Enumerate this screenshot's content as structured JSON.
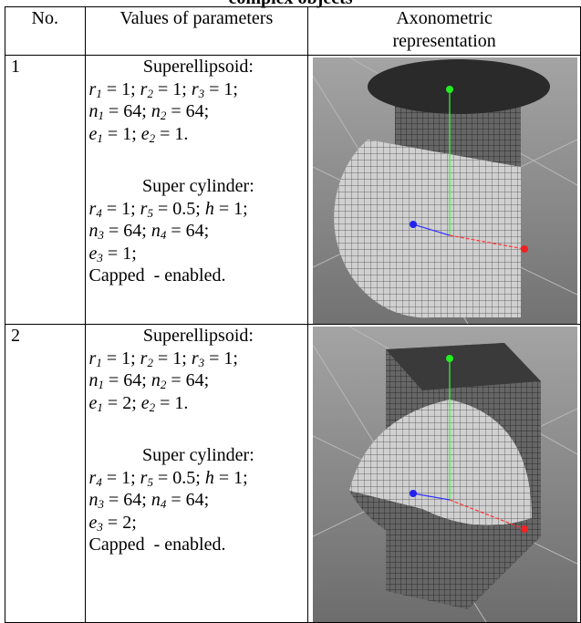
{
  "caption": "complex objects",
  "table": {
    "header": [
      "No.",
      "Values of parameters",
      [
        "Axonometric",
        "representation"
      ]
    ],
    "rows": [
      {
        "no": "1",
        "blocks": [
          {
            "title": "Superellipsoid:",
            "lines": [
              [
                {
                  "var": "r",
                  "sub": "1",
                  "text": " = 1; "
                },
                {
                  "var": "r",
                  "sub": "2",
                  "text": " = 1; "
                },
                {
                  "var": "r",
                  "sub": "3",
                  "text": " = 1;"
                }
              ],
              [
                {
                  "var": "n",
                  "sub": "1",
                  "text": " = 64; "
                },
                {
                  "var": "n",
                  "sub": "2",
                  "text": " = 64;"
                }
              ],
              [
                {
                  "var": "e",
                  "sub": "1",
                  "text": " = 1; "
                },
                {
                  "var": "e",
                  "sub": "2",
                  "text": " = 1."
                }
              ]
            ]
          },
          {
            "title": "Super cylinder:",
            "lines": [
              [
                {
                  "var": "r",
                  "sub": "4",
                  "text": " = 1; "
                },
                {
                  "var": "r",
                  "sub": "5",
                  "text": " = 0.5; "
                },
                {
                  "var": "h",
                  "text": " = 1;"
                }
              ],
              [
                {
                  "var": "n",
                  "sub": "3",
                  "text": " = 64; "
                },
                {
                  "var": "n",
                  "sub": "4",
                  "text": " = 64;"
                }
              ],
              [
                {
                  "var": "e",
                  "sub": "3",
                  "text": " = 1;"
                }
              ],
              [
                {
                  "text": "Capped  - enabled."
                }
              ]
            ]
          }
        ]
      },
      {
        "no": "2",
        "blocks": [
          {
            "title": "Superellipsoid:",
            "lines": [
              [
                {
                  "var": "r",
                  "sub": "1",
                  "text": " = 1; "
                },
                {
                  "var": "r",
                  "sub": "2",
                  "text": " = 1; "
                },
                {
                  "var": "r",
                  "sub": "3",
                  "text": " = 1;"
                }
              ],
              [
                {
                  "var": "n",
                  "sub": "1",
                  "text": " = 64; "
                },
                {
                  "var": "n",
                  "sub": "2",
                  "text": " = 64;"
                }
              ],
              [
                {
                  "var": "e",
                  "sub": "1",
                  "text": " = 2; "
                },
                {
                  "var": "e",
                  "sub": "2",
                  "text": " = 1."
                }
              ]
            ]
          },
          {
            "title": "Super cylinder:",
            "lines": [
              [
                {
                  "var": "r",
                  "sub": "4",
                  "text": " = 1; "
                },
                {
                  "var": "r",
                  "sub": "5",
                  "text": " = 0.5; "
                },
                {
                  "var": "h",
                  "text": " = 1;"
                }
              ],
              [
                {
                  "var": "n",
                  "sub": "3",
                  "text": " = 64; "
                },
                {
                  "var": "n",
                  "sub": "4",
                  "text": " = 64;"
                }
              ],
              [
                {
                  "var": "e",
                  "sub": "3",
                  "text": " = 2;"
                }
              ],
              [
                {
                  "text": "Capped  - enabled."
                }
              ]
            ]
          }
        ]
      }
    ]
  }
}
